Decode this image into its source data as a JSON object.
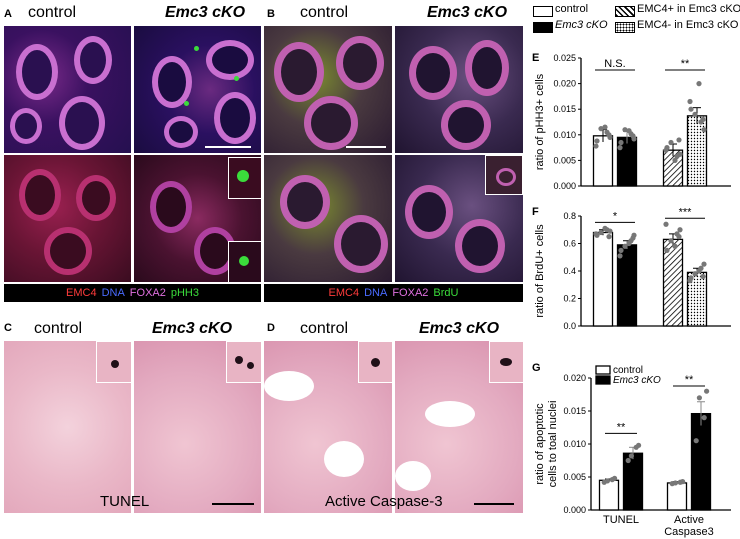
{
  "panels": {
    "A": {
      "letter": "A",
      "title_control": "control",
      "title_ko": "Emc3 cKO",
      "legend": [
        {
          "text": "EMC4",
          "color": "#ff3b3b"
        },
        {
          "text": "DNA",
          "color": "#4a6bff"
        },
        {
          "text": "FOXA2",
          "color": "#e070e0"
        },
        {
          "text": "pHH3",
          "color": "#3bdc3b"
        }
      ]
    },
    "B": {
      "letter": "B",
      "title_control": "control",
      "title_ko": "Emc3 cKO",
      "legend": [
        {
          "text": "EMC4",
          "color": "#ff3b3b"
        },
        {
          "text": "DNA",
          "color": "#4a6bff"
        },
        {
          "text": "FOXA2",
          "color": "#e070e0"
        },
        {
          "text": "BrdU",
          "color": "#3bdc3b"
        }
      ]
    },
    "C": {
      "letter": "C",
      "title_control": "control",
      "title_ko": "Emc3 cKO",
      "stain": "TUNEL"
    },
    "D": {
      "letter": "D",
      "title_control": "control",
      "title_ko": "Emc3 cKO",
      "stain": "Active Caspase-3"
    }
  },
  "legend_top": {
    "control": "control",
    "ko": "Emc3 cKO",
    "emc4pos": "EMC4+ in Emc3 cKO",
    "emc4neg": "EMC4- in Emc3 cKO"
  },
  "chart_data": [
    {
      "panel": "E",
      "type": "bar",
      "ylabel": "ratio of pHH3+ cells",
      "ylim": [
        0,
        0.025
      ],
      "yticks": [
        "0.000",
        "0.005",
        "0.010",
        "0.015",
        "0.020",
        "0.025"
      ],
      "categories": [
        "control",
        "Emc3 cKO",
        "EMC4+ in Emc3 cKO",
        "EMC4- in Emc3 cKO"
      ],
      "values": [
        0.0098,
        0.0095,
        0.007,
        0.0137
      ],
      "errors": [
        0.0012,
        0.0012,
        0.0012,
        0.0016
      ],
      "points": [
        [
          0.0088,
          0.0105,
          0.0112,
          0.0095,
          0.0078,
          0.0115,
          0.01
        ],
        [
          0.0085,
          0.0102,
          0.011,
          0.0092,
          0.0075,
          0.0108,
          0.0098
        ],
        [
          0.0075,
          0.0058,
          0.0085,
          0.0062,
          0.007,
          0.005,
          0.009
        ],
        [
          0.015,
          0.0125,
          0.014,
          0.011,
          0.0165,
          0.02,
          0.013
        ]
      ],
      "significance": [
        {
          "pair": [
            0,
            1
          ],
          "text": "N.S."
        },
        {
          "pair": [
            2,
            3
          ],
          "text": "**"
        }
      ]
    },
    {
      "panel": "F",
      "type": "bar",
      "ylabel": "ratio of BrdU+ cells",
      "ylim": [
        0,
        0.8
      ],
      "yticks": [
        "0.0",
        "0.2",
        "0.4",
        "0.6",
        "0.8"
      ],
      "categories": [
        "control",
        "Emc3 cKO",
        "EMC4+ in Emc3 cKO",
        "EMC4- in Emc3 cKO"
      ],
      "values": [
        0.68,
        0.59,
        0.63,
        0.39
      ],
      "errors": [
        0.02,
        0.03,
        0.04,
        0.03
      ],
      "points": [
        [
          0.66,
          0.7,
          0.68,
          0.69,
          0.67,
          0.71,
          0.65
        ],
        [
          0.55,
          0.62,
          0.58,
          0.66,
          0.51,
          0.6,
          0.64
        ],
        [
          0.55,
          0.67,
          0.62,
          0.7,
          0.74,
          0.58,
          0.65
        ],
        [
          0.35,
          0.42,
          0.38,
          0.45,
          0.33,
          0.4,
          0.36
        ]
      ],
      "significance": [
        {
          "pair": [
            0,
            1
          ],
          "text": "*"
        },
        {
          "pair": [
            2,
            3
          ],
          "text": "***"
        }
      ]
    },
    {
      "panel": "G",
      "type": "bar",
      "ylabel_line1": "ratio of apoptotic",
      "ylabel_line2": "cells to toal nuclei",
      "ylim": [
        0,
        0.02
      ],
      "yticks": [
        "0.000",
        "0.005",
        "0.010",
        "0.015",
        "0.020"
      ],
      "groups": [
        "TUNEL",
        "Active Caspase3"
      ],
      "group_line1": [
        "TUNEL",
        "Active"
      ],
      "group_line2": [
        "",
        "Caspase3"
      ],
      "series": [
        {
          "name": "control",
          "values": [
            0.0045,
            0.0041
          ],
          "errors": [
            0.0002,
            0.0002
          ],
          "points": [
            [
              0.0042,
              0.0046,
              0.0044,
              0.0048
            ],
            [
              0.004,
              0.0042,
              0.0041,
              0.0043
            ]
          ]
        },
        {
          "name": "Emc3 cKO",
          "values": [
            0.0086,
            0.0146
          ],
          "errors": [
            0.0009,
            0.0018
          ],
          "points": [
            [
              0.0075,
              0.0095,
              0.0082,
              0.0098
            ],
            [
              0.0105,
              0.014,
              0.017,
              0.018
            ]
          ]
        }
      ],
      "significance": [
        {
          "group": 0,
          "text": "**"
        },
        {
          "group": 1,
          "text": "**"
        }
      ]
    }
  ]
}
